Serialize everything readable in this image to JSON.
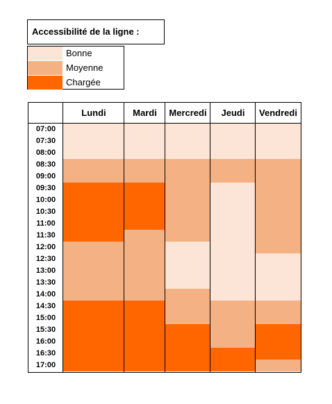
{
  "legend": {
    "title": "Accessibilité de la ligne :",
    "items": [
      {
        "label": "Bonne",
        "color": "#fce4d6"
      },
      {
        "label": "Moyenne",
        "color": "#f4b183"
      },
      {
        "label": "Chargée",
        "color": "#ff6600"
      }
    ]
  },
  "days": [
    "Lundi",
    "Mardi",
    "Mercredi",
    "Jeudi",
    "Vendredi"
  ],
  "times": [
    "07:00",
    "07:30",
    "08:00",
    "08:30",
    "09:00",
    "09:30",
    "10:00",
    "10:30",
    "11:00",
    "11:30",
    "12:00",
    "12:30",
    "13:00",
    "13:30",
    "14:00",
    "14:30",
    "15:00",
    "15:30",
    "16:00",
    "16:30",
    "17:00"
  ],
  "levels": {
    "Lundi": [
      0,
      0,
      0,
      1,
      1,
      2,
      2,
      2,
      2,
      2,
      1,
      1,
      1,
      1,
      1,
      2,
      2,
      2,
      2,
      2,
      2
    ],
    "Mardi": [
      0,
      0,
      0,
      1,
      1,
      2,
      2,
      2,
      2,
      1,
      1,
      1,
      1,
      1,
      1,
      2,
      2,
      2,
      2,
      2,
      2
    ],
    "Mercredi": [
      0,
      0,
      0,
      1,
      1,
      1,
      1,
      1,
      1,
      1,
      0,
      0,
      0,
      0,
      1,
      1,
      1,
      2,
      2,
      2,
      2
    ],
    "Jeudi": [
      0,
      0,
      0,
      1,
      1,
      0,
      0,
      0,
      0,
      0,
      0,
      0,
      0,
      0,
      0,
      1,
      1,
      1,
      1,
      2,
      2
    ],
    "Vendredi": [
      0,
      0,
      0,
      1,
      1,
      1,
      1,
      1,
      1,
      1,
      1,
      0,
      0,
      0,
      0,
      1,
      1,
      2,
      2,
      2,
      1
    ]
  }
}
